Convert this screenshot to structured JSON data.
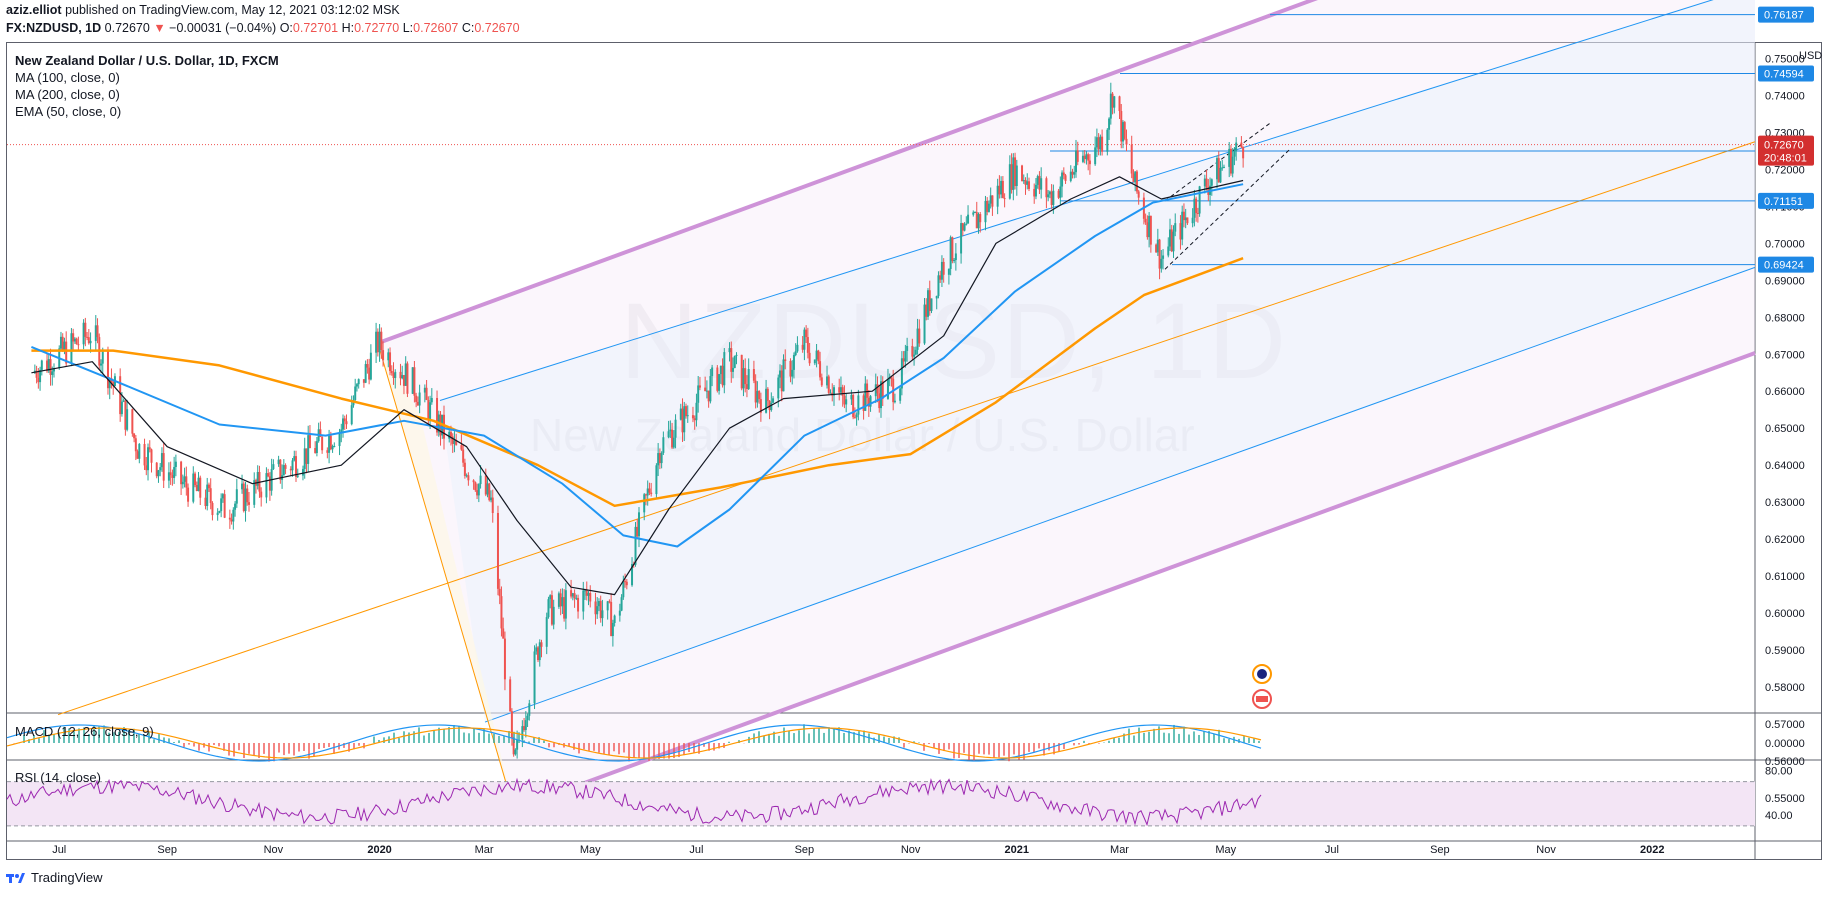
{
  "header": {
    "author": "aziz.elliot",
    "published": "published on TradingView.com, May 12, 2021 03:12:02 MSK",
    "symbol": "FX:NZDUSD, 1D",
    "last": "0.72670",
    "change": "−0.00031 (−0.04%)",
    "o_label": "O:",
    "o": "0.72701",
    "h_label": "H:",
    "h": "0.72770",
    "l_label": "L:",
    "l": "0.72607",
    "c_label": "C:",
    "c": "0.72670"
  },
  "legend": {
    "title": "New Zealand Dollar / U.S. Dollar, 1D, FXCM",
    "ma100": "MA (100, close, 0)",
    "ma200": "MA (200, close, 0)",
    "ema50": "EMA (50, close, 0)"
  },
  "watermark": {
    "symbol": "NZDUSD, 1D",
    "name": "New Zealand Dollar / U.S. Dollar"
  },
  "macd_label": "MACD (12, 26, close, 9)",
  "rsi_label": "RSI (14, close)",
  "footer": {
    "brand": "TradingView"
  },
  "colors": {
    "up": "#26a69a",
    "down": "#ef5350",
    "ma100": "#131722",
    "ma200": "#ff9800",
    "ema50": "#2196f3",
    "channel": "#ce93d8",
    "inner": "#2196f3",
    "fib": "#ff9800",
    "rsi": "#9c27b0",
    "last_bg": "#d32f2f",
    "level_bg": "#1e88e5"
  },
  "chart_data": {
    "type": "candlestick",
    "currency": "USD",
    "y_axis": {
      "min": 0.545,
      "max": 0.765,
      "ticks": [
        "0.75000",
        "0.74000",
        "0.73000",
        "0.72000",
        "0.71000",
        "0.70000",
        "0.69000",
        "0.68000",
        "0.67000",
        "0.66000",
        "0.65000",
        "0.64000",
        "0.63000",
        "0.62000",
        "0.61000",
        "0.60000",
        "0.59000",
        "0.58000",
        "0.57000",
        "0.56000",
        "0.55000"
      ]
    },
    "x_axis": {
      "labels": [
        "Jul",
        "Sep",
        "Nov",
        "2020",
        "Mar",
        "May",
        "Jul",
        "Sep",
        "Nov",
        "2021",
        "Mar",
        "May",
        "Jul",
        "Sep",
        "Nov",
        "2022"
      ]
    },
    "price_path": [
      [
        "2019-06-15",
        0.665
      ],
      [
        "2019-07-20",
        0.676
      ],
      [
        "2019-08-15",
        0.645
      ],
      [
        "2019-09-10",
        0.635
      ],
      [
        "2019-10-05",
        0.628
      ],
      [
        "2019-11-10",
        0.64
      ],
      [
        "2019-12-10",
        0.65
      ],
      [
        "2019-12-31",
        0.673
      ],
      [
        "2020-01-20",
        0.662
      ],
      [
        "2020-02-15",
        0.643
      ],
      [
        "2020-03-05",
        0.63
      ],
      [
        "2020-03-18",
        0.558
      ],
      [
        "2020-04-05",
        0.6
      ],
      [
        "2020-05-01",
        0.605
      ],
      [
        "2020-05-15",
        0.597
      ],
      [
        "2020-06-10",
        0.645
      ],
      [
        "2020-07-20",
        0.668
      ],
      [
        "2020-08-10",
        0.657
      ],
      [
        "2020-09-01",
        0.673
      ],
      [
        "2020-09-25",
        0.656
      ],
      [
        "2020-10-25",
        0.662
      ],
      [
        "2020-11-20",
        0.695
      ],
      [
        "2020-12-31",
        0.72
      ],
      [
        "2021-01-20",
        0.713
      ],
      [
        "2021-02-20",
        0.729
      ],
      [
        "2021-02-25",
        0.741
      ],
      [
        "2021-03-10",
        0.715
      ],
      [
        "2021-03-25",
        0.696
      ],
      [
        "2021-04-20",
        0.716
      ],
      [
        "2021-05-11",
        0.7267
      ]
    ],
    "ma100": [
      [
        "2019-06-15",
        0.665
      ],
      [
        "2019-07-20",
        0.668
      ],
      [
        "2019-09-01",
        0.645
      ],
      [
        "2019-10-20",
        0.635
      ],
      [
        "2019-12-10",
        0.64
      ],
      [
        "2020-01-15",
        0.655
      ],
      [
        "2020-02-20",
        0.645
      ],
      [
        "2020-03-20",
        0.625
      ],
      [
        "2020-04-20",
        0.607
      ],
      [
        "2020-05-15",
        0.605
      ],
      [
        "2020-06-15",
        0.628
      ],
      [
        "2020-07-20",
        0.65
      ],
      [
        "2020-08-20",
        0.658
      ],
      [
        "2020-10-10",
        0.66
      ],
      [
        "2020-11-20",
        0.675
      ],
      [
        "2020-12-20",
        0.7
      ],
      [
        "2021-02-01",
        0.712
      ],
      [
        "2021-03-01",
        0.718
      ],
      [
        "2021-03-25",
        0.712
      ],
      [
        "2021-05-11",
        0.717
      ]
    ],
    "ma200": [
      [
        "2019-06-15",
        0.671
      ],
      [
        "2019-08-01",
        0.671
      ],
      [
        "2019-10-01",
        0.667
      ],
      [
        "2019-12-10",
        0.658
      ],
      [
        "2020-02-01",
        0.652
      ],
      [
        "2020-04-01",
        0.64
      ],
      [
        "2020-05-15",
        0.629
      ],
      [
        "2020-07-15",
        0.634
      ],
      [
        "2020-09-15",
        0.64
      ],
      [
        "2020-11-01",
        0.643
      ],
      [
        "2020-12-20",
        0.657
      ],
      [
        "2021-02-15",
        0.677
      ],
      [
        "2021-03-15",
        0.686
      ],
      [
        "2021-05-11",
        0.696
      ]
    ],
    "ema50": [
      [
        "2019-06-15",
        0.672
      ],
      [
        "2019-08-01",
        0.663
      ],
      [
        "2019-10-01",
        0.651
      ],
      [
        "2019-12-01",
        0.648
      ],
      [
        "2020-01-15",
        0.652
      ],
      [
        "2020-03-01",
        0.648
      ],
      [
        "2020-04-15",
        0.635
      ],
      [
        "2020-05-20",
        0.621
      ],
      [
        "2020-06-20",
        0.618
      ],
      [
        "2020-07-20",
        0.628
      ],
      [
        "2020-09-01",
        0.648
      ],
      [
        "2020-10-15",
        0.658
      ],
      [
        "2020-11-20",
        0.669
      ],
      [
        "2020-12-31",
        0.687
      ],
      [
        "2021-02-15",
        0.702
      ],
      [
        "2021-03-20",
        0.711
      ],
      [
        "2021-05-11",
        0.716
      ]
    ],
    "channel_lines": [
      {
        "name": "upper",
        "from": [
          "2019-12-31",
          0.673
        ],
        "to": [
          "2021-02-25",
          0.746
        ]
      },
      {
        "name": "lower",
        "from": [
          "2020-03-18",
          0.547
        ],
        "to": [
          "2022-02-10",
          0.665
        ]
      }
    ],
    "horizontal_levels": [
      "0.76187",
      "0.74594",
      "0.72500",
      "0.71151",
      "0.69424"
    ],
    "last_price": "0.72670",
    "countdown": "20:48:01",
    "macd": {
      "zero_tick": "0.00000"
    },
    "rsi": {
      "ticks": [
        "80.00",
        "40.00"
      ],
      "upper": 70,
      "lower": 30
    }
  }
}
